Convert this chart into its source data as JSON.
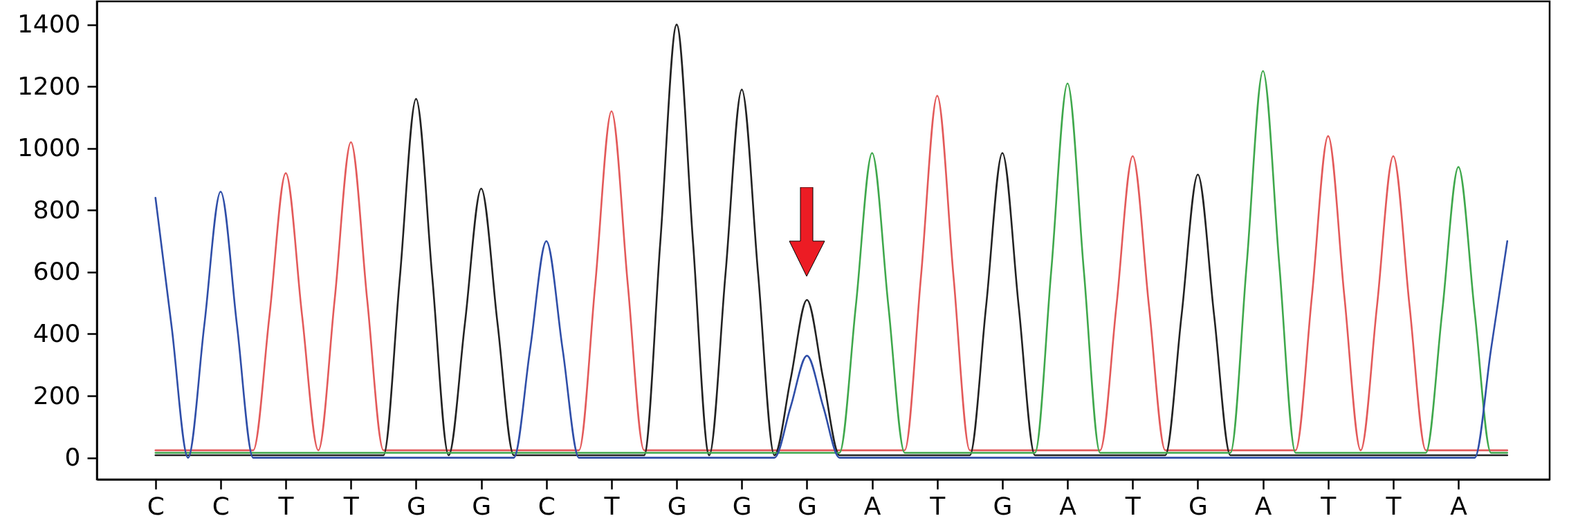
{
  "chart_data": {
    "type": "line",
    "ylim": [
      -70,
      1475
    ],
    "yticks": [
      0,
      200,
      400,
      600,
      800,
      1000,
      1200,
      1400
    ],
    "categories": [
      null,
      null,
      null,
      "C",
      null,
      null,
      null,
      "C",
      null,
      null,
      null,
      "T",
      null,
      null,
      null,
      "T",
      null,
      null,
      null,
      "G",
      null,
      null,
      null,
      "G",
      null,
      null,
      null,
      "C",
      null,
      null,
      null,
      "T",
      null,
      null,
      null,
      "G",
      null,
      null,
      null,
      "G",
      null,
      null,
      null,
      "G",
      null,
      null,
      null,
      "A",
      null,
      null,
      null,
      "T",
      null,
      null,
      null,
      "G",
      null,
      null,
      null,
      "A",
      null,
      null,
      null,
      "T",
      null,
      null,
      null,
      "G",
      null,
      null,
      null,
      "A",
      null,
      null,
      null,
      "T",
      null,
      null,
      null,
      "T",
      null,
      null,
      null,
      "A",
      null,
      null,
      null,
      null,
      null
    ],
    "grid": false,
    "marker": "none",
    "line_style": "solid",
    "series": [
      {
        "color": "#e35a5a",
        "values": [
          null,
          null,
          null,
          24,
          24,
          24,
          24,
          24,
          24,
          24,
          460,
          920,
          460,
          24,
          510,
          1020,
          510,
          24,
          24,
          24,
          24,
          24,
          24,
          24,
          24,
          24,
          24,
          24,
          24,
          24,
          560,
          1120,
          560,
          24,
          24,
          24,
          24,
          24,
          24,
          24,
          24,
          24,
          24,
          24,
          24,
          24,
          24,
          24,
          24,
          24,
          585,
          1170,
          585,
          24,
          24,
          24,
          24,
          24,
          24,
          24,
          24,
          24,
          490,
          975,
          490,
          24,
          24,
          24,
          24,
          24,
          24,
          24,
          24,
          24,
          520,
          1040,
          520,
          24,
          490,
          975,
          490,
          24,
          24,
          24,
          24,
          24,
          24,
          null,
          null
        ]
      },
      {
        "color": "#222222",
        "values": [
          null,
          null,
          null,
          8,
          8,
          8,
          8,
          8,
          8,
          8,
          8,
          8,
          8,
          8,
          8,
          8,
          8,
          8,
          580,
          1160,
          580,
          8,
          435,
          870,
          435,
          8,
          8,
          8,
          8,
          8,
          8,
          8,
          8,
          8,
          700,
          1400,
          700,
          8,
          595,
          1190,
          595,
          8,
          255,
          510,
          255,
          8,
          8,
          8,
          8,
          8,
          8,
          8,
          8,
          8,
          490,
          985,
          490,
          8,
          8,
          8,
          8,
          8,
          8,
          8,
          8,
          8,
          460,
          915,
          460,
          8,
          8,
          8,
          8,
          8,
          8,
          8,
          8,
          8,
          8,
          8,
          8,
          8,
          8,
          8,
          8,
          8,
          8,
          null,
          null
        ]
      },
      {
        "color": "#3fa84c",
        "values": [
          null,
          null,
          null,
          16,
          16,
          16,
          16,
          16,
          16,
          16,
          16,
          16,
          16,
          16,
          16,
          16,
          16,
          16,
          16,
          16,
          16,
          16,
          16,
          16,
          16,
          16,
          16,
          16,
          16,
          16,
          16,
          16,
          16,
          16,
          16,
          16,
          16,
          16,
          16,
          16,
          16,
          16,
          16,
          16,
          16,
          16,
          490,
          985,
          490,
          16,
          16,
          16,
          16,
          16,
          16,
          16,
          16,
          16,
          605,
          1210,
          605,
          16,
          16,
          16,
          16,
          16,
          16,
          16,
          16,
          16,
          625,
          1250,
          625,
          16,
          16,
          16,
          16,
          16,
          16,
          16,
          16,
          16,
          470,
          940,
          470,
          16,
          16,
          null,
          null
        ]
      },
      {
        "color": "#2f4ea8",
        "values": [
          null,
          null,
          null,
          840,
          420,
          0,
          430,
          860,
          430,
          0,
          0,
          0,
          0,
          0,
          0,
          0,
          0,
          0,
          0,
          0,
          0,
          0,
          0,
          0,
          0,
          0,
          350,
          700,
          350,
          0,
          0,
          0,
          0,
          0,
          0,
          0,
          0,
          0,
          0,
          0,
          0,
          0,
          165,
          330,
          165,
          0,
          0,
          0,
          0,
          0,
          0,
          0,
          0,
          0,
          0,
          0,
          0,
          0,
          0,
          0,
          0,
          0,
          0,
          0,
          0,
          0,
          0,
          0,
          0,
          0,
          0,
          0,
          0,
          0,
          0,
          0,
          0,
          0,
          0,
          0,
          0,
          0,
          0,
          0,
          0,
          350,
          700,
          null,
          null
        ]
      }
    ]
  }
}
